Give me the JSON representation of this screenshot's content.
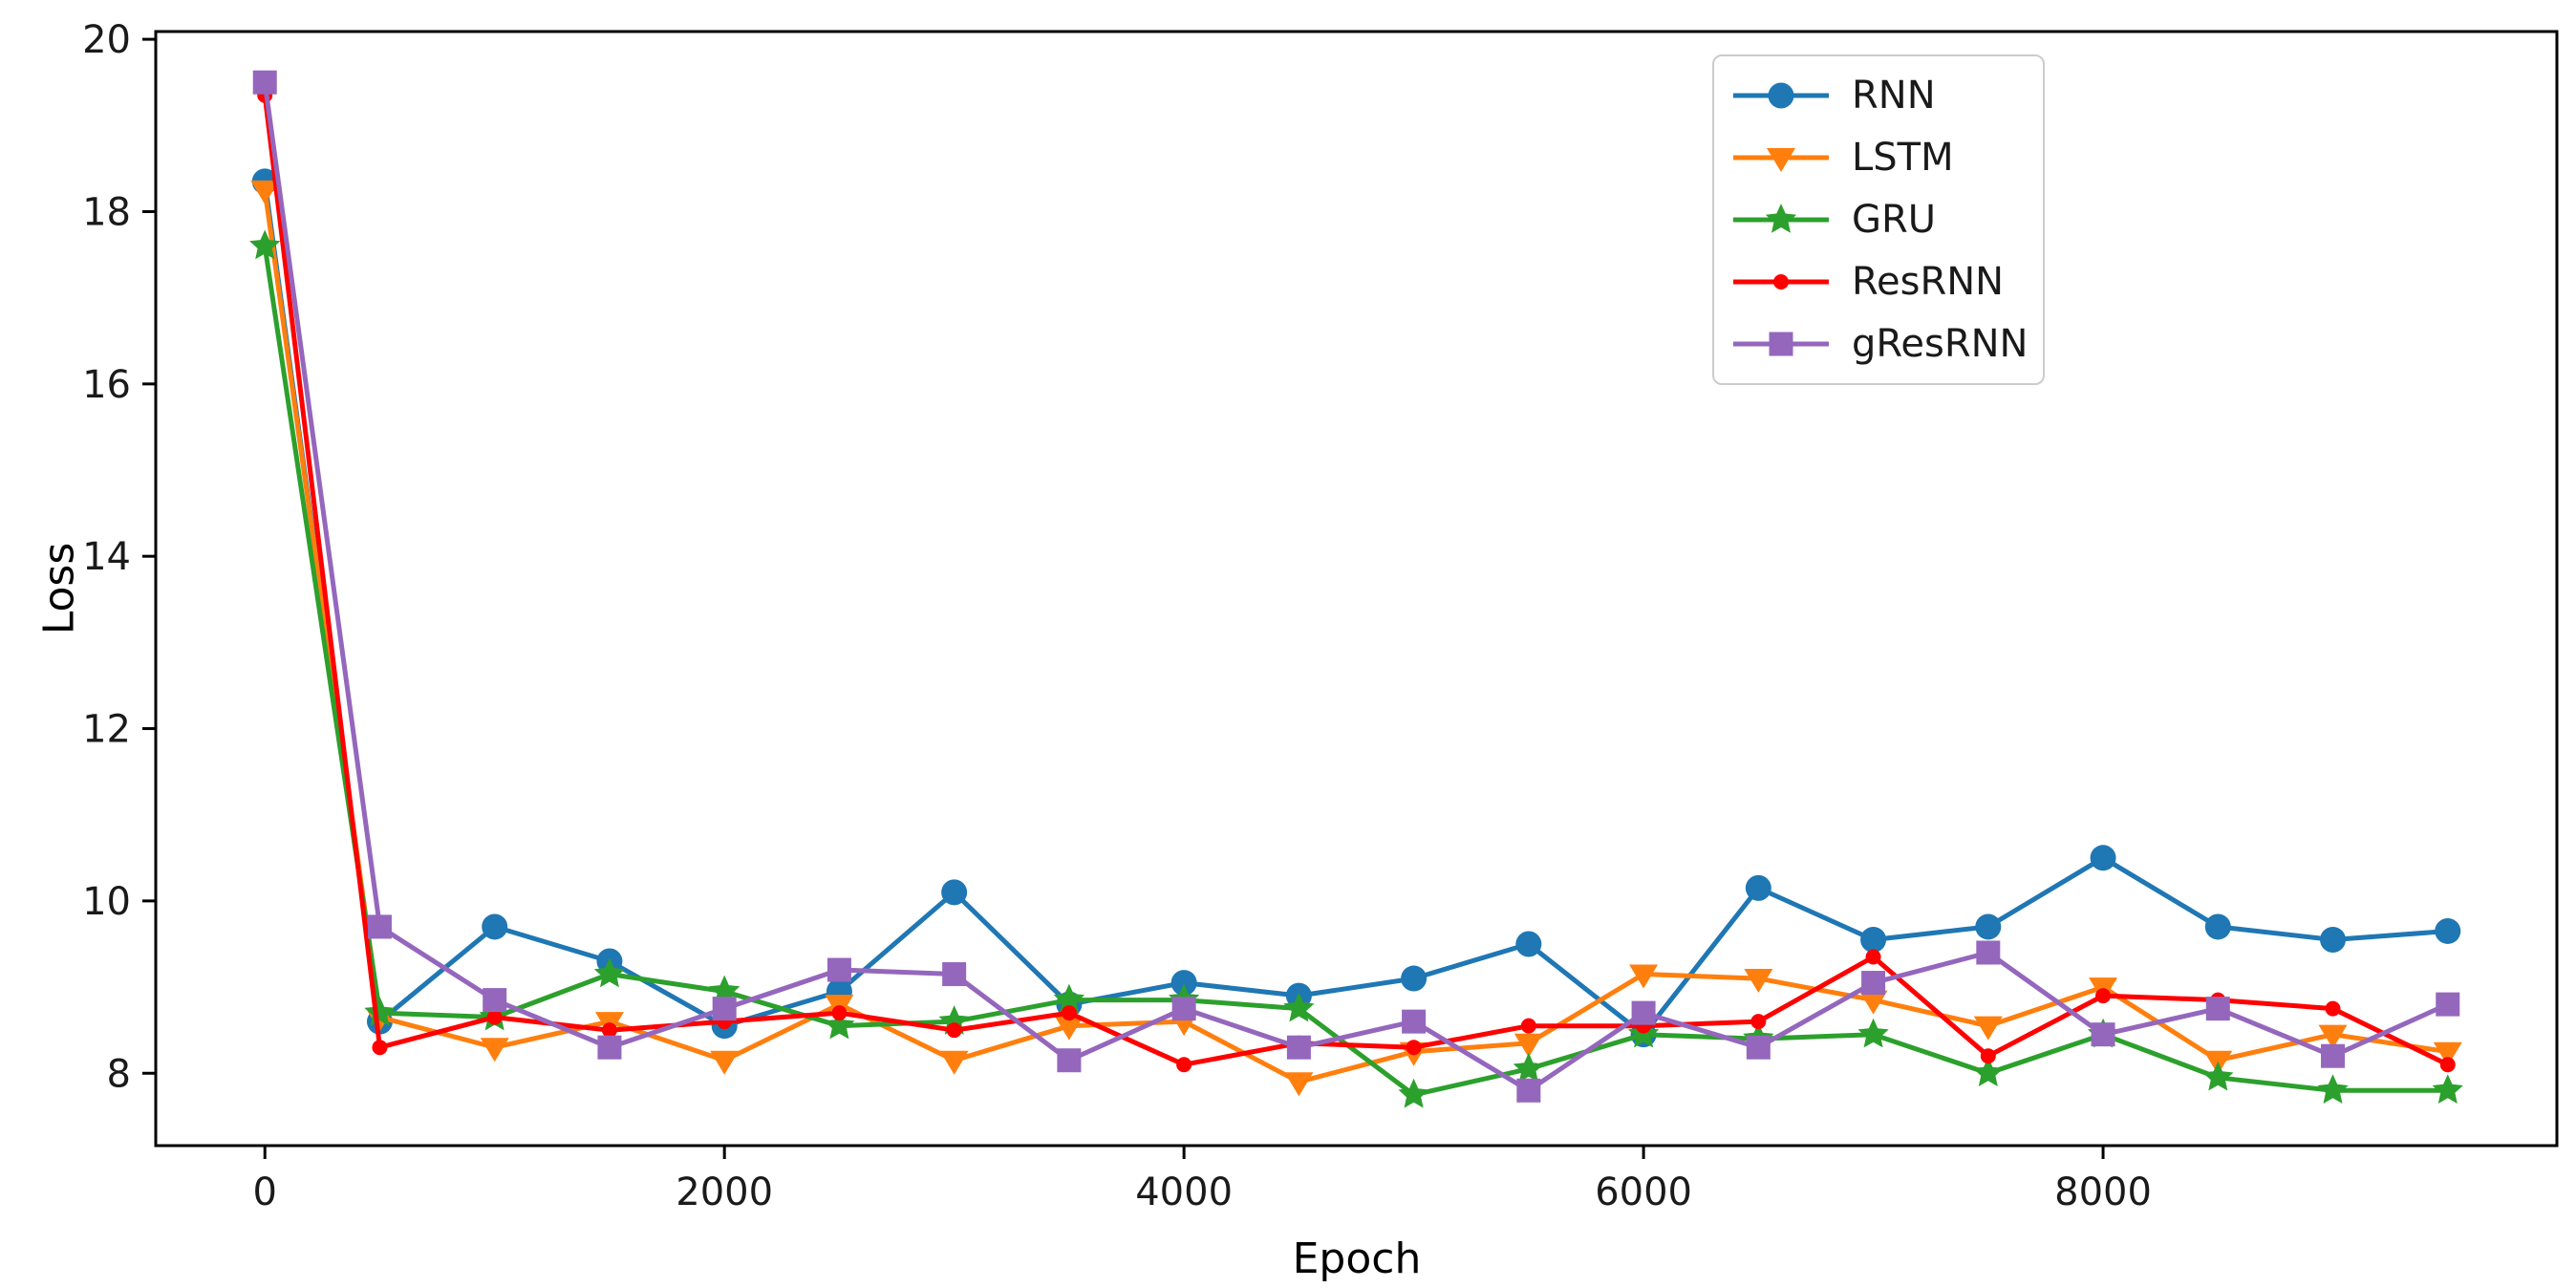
{
  "figure": {
    "xlabel": "Epoch",
    "ylabel": "Loss"
  },
  "chart_data": {
    "type": "line",
    "title": "",
    "xlabel": "Epoch",
    "ylabel": "Loss",
    "xlim": [
      -475,
      9975
    ],
    "ylim": [
      7.16,
      20.09
    ],
    "x_ticks": [
      "0",
      "2000",
      "4000",
      "6000",
      "8000"
    ],
    "x_tick_values": [
      0,
      2000,
      4000,
      6000,
      8000
    ],
    "y_ticks": [
      "8",
      "10",
      "12",
      "14",
      "16",
      "18",
      "20"
    ],
    "y_tick_values": [
      8,
      10,
      12,
      14,
      16,
      18,
      20
    ],
    "grid": false,
    "legend_position": "upper right",
    "x": [
      0,
      500,
      1000,
      1500,
      2000,
      2500,
      3000,
      3500,
      4000,
      4500,
      5000,
      5500,
      6000,
      6500,
      7000,
      7500,
      8000,
      8500,
      9000,
      9500
    ],
    "series": [
      {
        "name": "RNN",
        "color": "#1f77b4",
        "marker": "circle",
        "values": [
          18.35,
          8.6,
          9.7,
          9.3,
          8.55,
          8.95,
          10.1,
          8.8,
          9.05,
          8.9,
          9.1,
          9.5,
          8.45,
          10.15,
          9.55,
          9.7,
          10.5,
          9.7,
          9.55,
          9.65
        ]
      },
      {
        "name": "LSTM",
        "color": "#ff7f0e",
        "marker": "triangle-down",
        "values": [
          18.25,
          8.65,
          8.3,
          8.6,
          8.15,
          8.8,
          8.15,
          8.55,
          8.6,
          7.9,
          8.25,
          8.35,
          9.15,
          9.1,
          8.85,
          8.55,
          9.0,
          8.15,
          8.45,
          8.25
        ]
      },
      {
        "name": "GRU",
        "color": "#2ca02c",
        "marker": "star",
        "values": [
          17.6,
          8.7,
          8.65,
          9.15,
          8.95,
          8.55,
          8.6,
          8.85,
          8.85,
          8.75,
          7.75,
          8.05,
          8.45,
          8.4,
          8.45,
          8.0,
          8.45,
          7.95,
          7.8,
          7.8
        ]
      },
      {
        "name": "ResRNN",
        "color": "#ff0000",
        "marker": "dot",
        "values": [
          19.35,
          8.3,
          8.65,
          8.5,
          8.6,
          8.7,
          8.5,
          8.7,
          8.1,
          8.35,
          8.3,
          8.55,
          8.55,
          8.6,
          9.35,
          8.2,
          8.9,
          8.85,
          8.75,
          8.1
        ]
      },
      {
        "name": "gResRNN",
        "color": "#9467bd",
        "marker": "square",
        "values": [
          19.5,
          9.7,
          8.85,
          8.3,
          8.75,
          9.2,
          9.15,
          8.15,
          8.75,
          8.3,
          8.6,
          7.8,
          8.7,
          8.3,
          9.05,
          9.4,
          8.45,
          8.75,
          8.2,
          8.8
        ]
      }
    ]
  }
}
